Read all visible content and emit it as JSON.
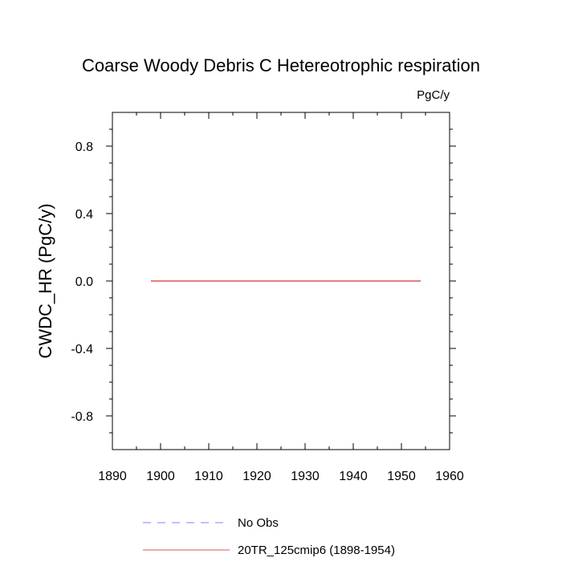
{
  "chart_data": {
    "type": "line",
    "title": "Coarse Woody Debris C Hetereotrophic respiration",
    "units_label": "PgC/y",
    "ylabel": "CWDC_HR  (PgC/y)",
    "xlabel": "",
    "xlim": [
      1890,
      1960
    ],
    "ylim": [
      -1,
      1
    ],
    "x_ticks": [
      1890,
      1900,
      1910,
      1920,
      1930,
      1940,
      1950,
      1960
    ],
    "x_tick_labels": [
      "1890",
      "1900",
      "1910",
      "1920",
      "1930",
      "1940",
      "1950",
      "1960"
    ],
    "x_minor_step": 5,
    "y_ticks": [
      -0.8,
      -0.4,
      0.0,
      0.4,
      0.8
    ],
    "y_tick_labels": [
      "-0.8",
      "-0.4",
      "0.0",
      "0.4",
      "0.8"
    ],
    "y_minor_step": 0.1,
    "grid": false,
    "legend_position": "bottom",
    "series": [
      {
        "name": "20TR_125cmip6 (1898-1954)",
        "color": "#e05050",
        "dash": "solid",
        "x": [
          1898,
          1954
        ],
        "y": [
          0.0,
          0.0
        ]
      }
    ],
    "legend": [
      {
        "label": "No Obs",
        "color": "#8080ff",
        "dash": "dashed"
      },
      {
        "label": "20TR_125cmip6 (1898-1954)",
        "color": "#e05050",
        "dash": "solid"
      }
    ]
  }
}
